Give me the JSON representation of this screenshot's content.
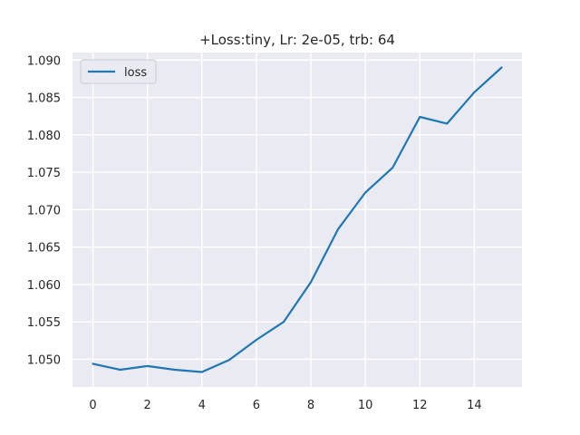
{
  "chart_data": {
    "type": "line",
    "title": "+Loss:tiny, Lr: 2e-05, trb: 64",
    "xlabel": "",
    "ylabel": "",
    "x": [
      0,
      1,
      2,
      3,
      4,
      5,
      6,
      7,
      8,
      9,
      10,
      11,
      12,
      13,
      14,
      15
    ],
    "series": [
      {
        "name": "loss",
        "color": "#1f77b4",
        "values": [
          1.0494,
          1.0486,
          1.0491,
          1.0486,
          1.0483,
          1.0499,
          1.0526,
          1.055,
          1.0603,
          1.0674,
          1.0723,
          1.0756,
          1.0824,
          1.0815,
          1.0857,
          1.089
        ]
      }
    ],
    "xlim": [
      -0.75,
      15.75
    ],
    "ylim": [
      1.0463,
      1.091
    ],
    "xticks": [
      0,
      2,
      4,
      6,
      8,
      10,
      12,
      14
    ],
    "yticks": [
      1.05,
      1.055,
      1.06,
      1.065,
      1.07,
      1.075,
      1.08,
      1.085,
      1.09
    ],
    "ytick_labels": [
      "1.050",
      "1.055",
      "1.060",
      "1.065",
      "1.070",
      "1.075",
      "1.080",
      "1.085",
      "1.090"
    ],
    "grid": true,
    "legend": "top-left",
    "background": "#eaeaf2"
  }
}
